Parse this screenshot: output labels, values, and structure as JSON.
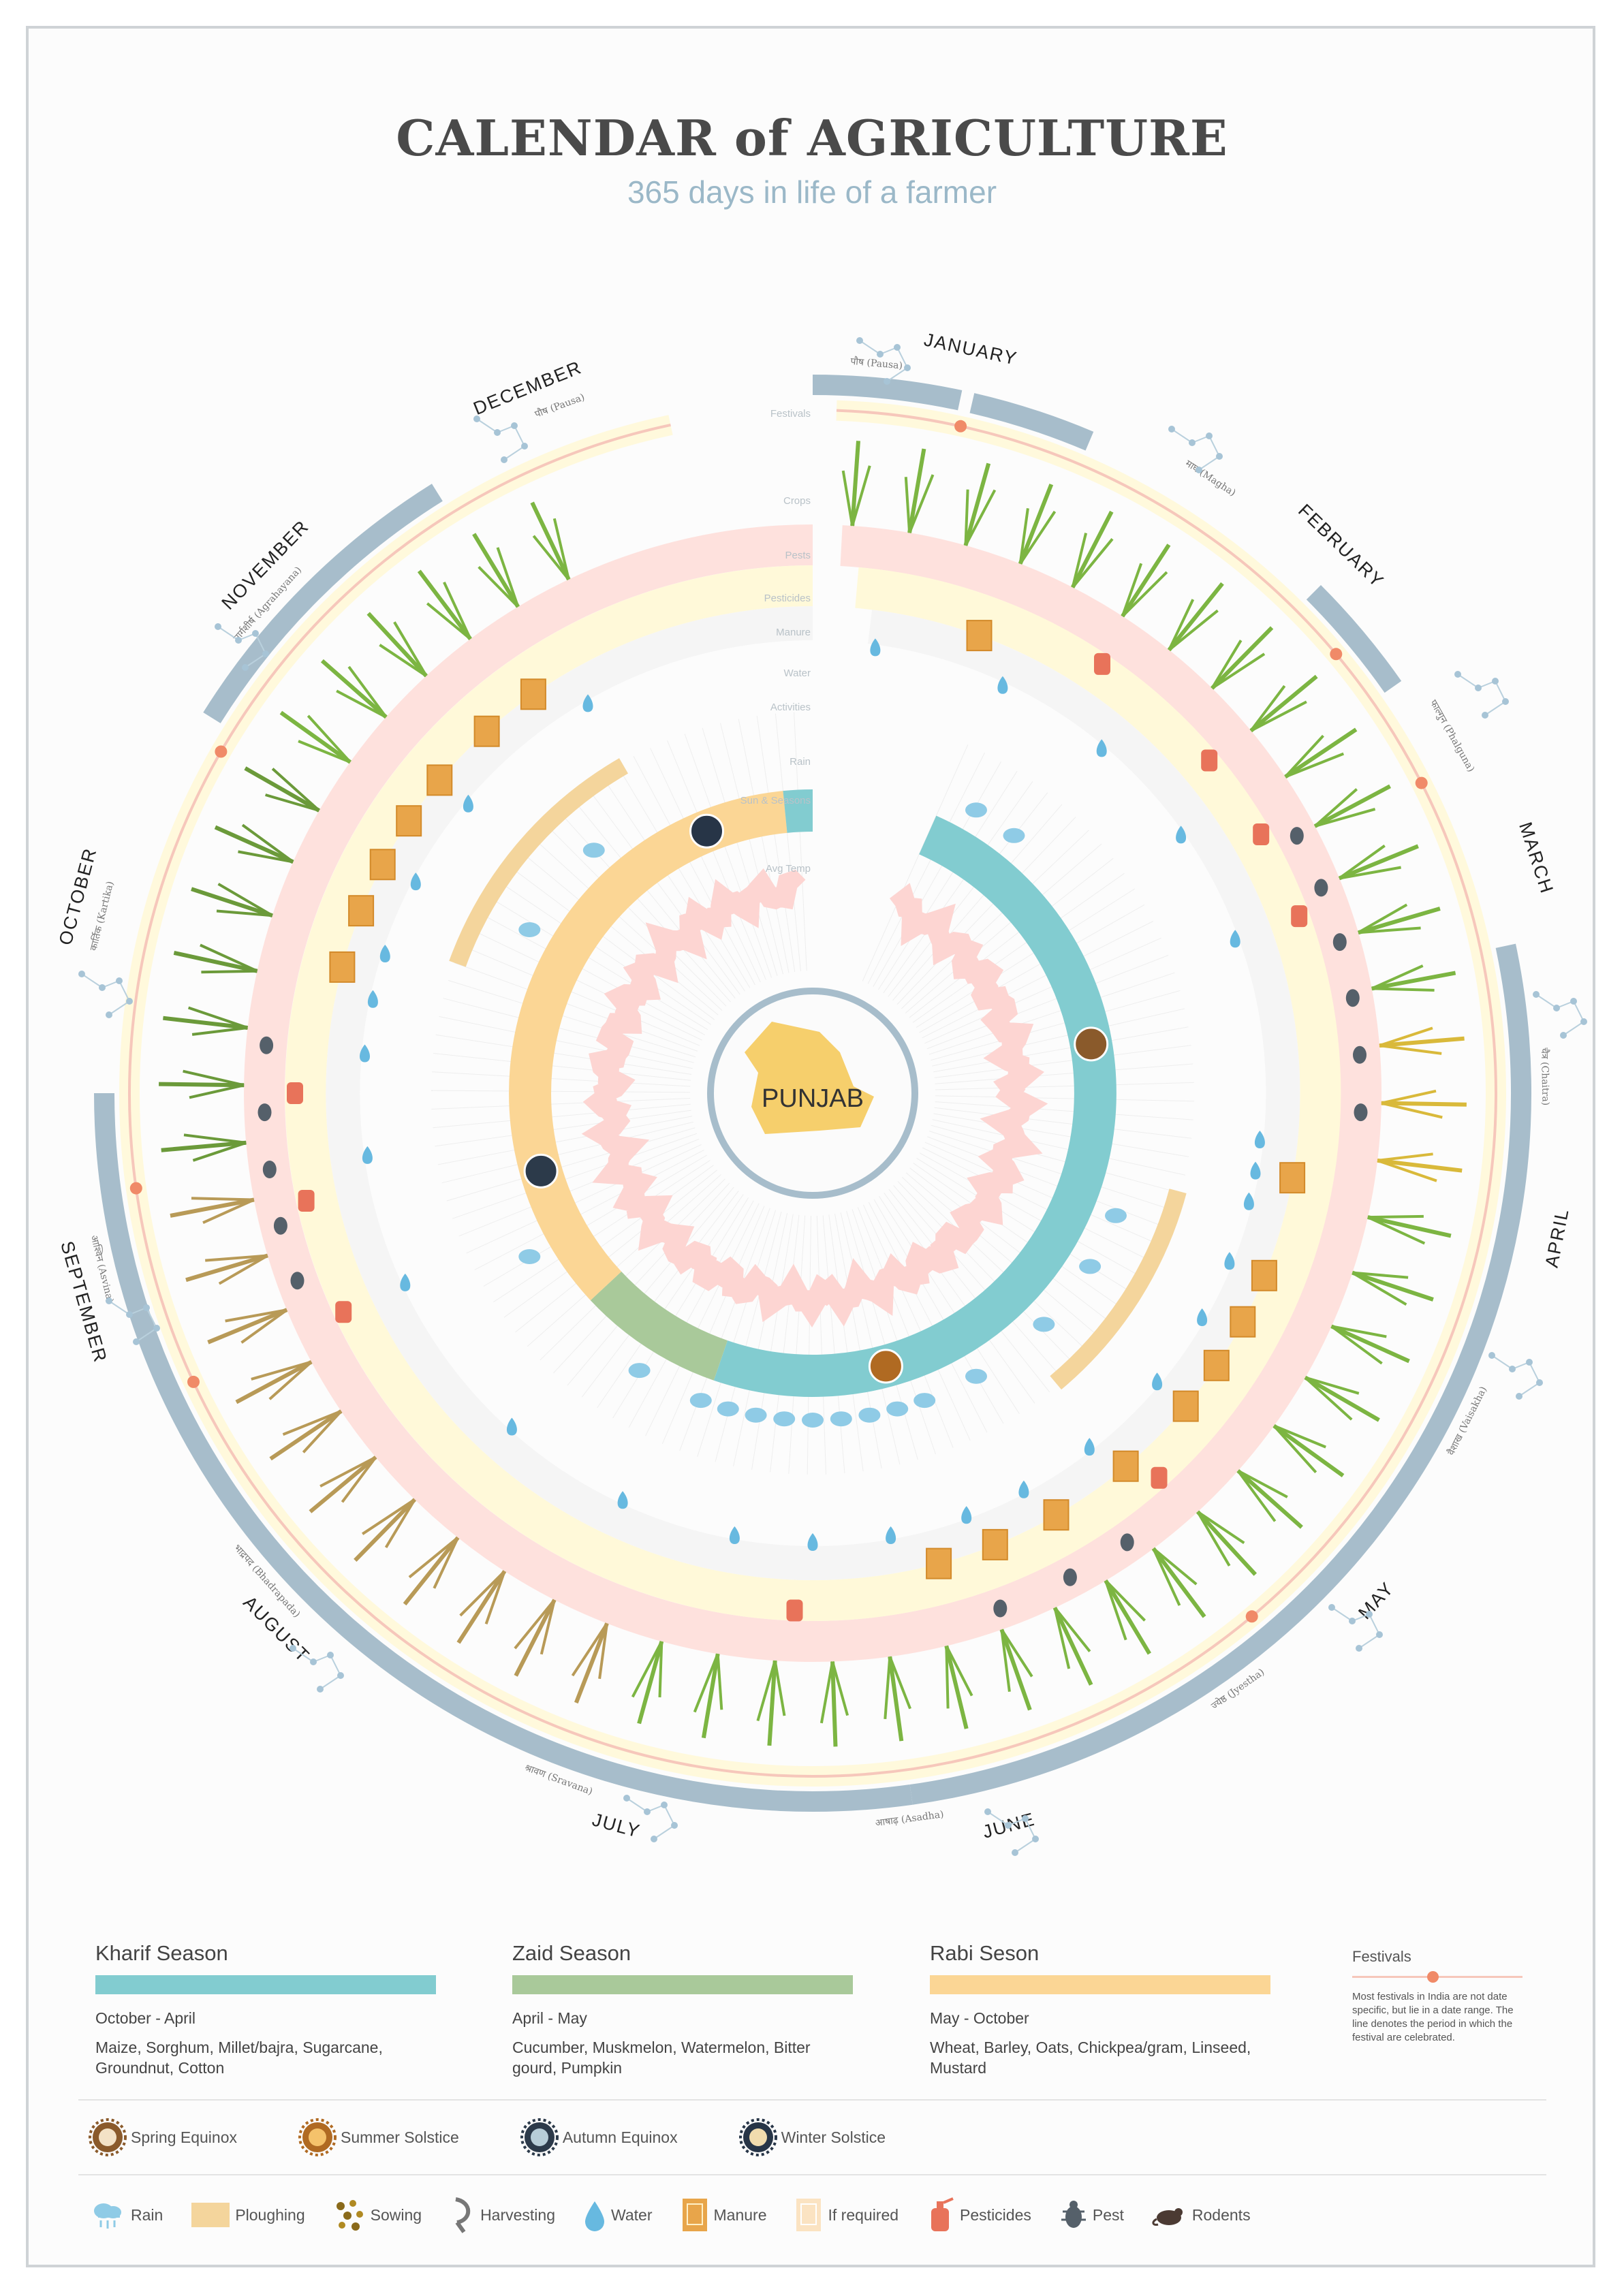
{
  "title": "CALENDAR of AGRICULTURE",
  "subtitle": "365 days in life of a farmer",
  "colors": {
    "kharif": "#82ccd0",
    "zaid": "#a9c99a",
    "rabi": "#fbd695",
    "festival": "#a7bdcb",
    "festival_dot": "#f08a68",
    "crops_ring": "#e9e9e5",
    "pests_ring": "#fee1dd",
    "manure_ring": "#fff9d9",
    "water_ring": "#f5f5f5",
    "temp": "#fdd5d2"
  },
  "chart_data": {
    "type": "radial-calendar",
    "center_label": "PUNJAB",
    "ring_labels": [
      "Festivals",
      "Crops",
      "Pests",
      "Pesticides",
      "Manure",
      "Water",
      "Activities",
      "Rain",
      "Sun & Seasons",
      "Avg Temp"
    ],
    "months": [
      "JANUARY",
      "FEBRUARY",
      "MARCH",
      "APRIL",
      "MAY",
      "JUNE",
      "JULY",
      "AUGUST",
      "SEPTEMBER",
      "OCTOBER",
      "NOVEMBER",
      "DECEMBER"
    ],
    "hindi_months": [
      "पौष (Pausa)",
      "माघ (Magha)",
      "फाल्गुन (Phalguna)",
      "चैत्र (Chaitra)",
      "वैशाख (Vaisakha)",
      "ज्येष्ठ (Jyestha)",
      "आषाढ़ (Asadha)",
      "श्रावण (Sravana)",
      "भाद्रपद (Bhadrapada)",
      "आश्विन (Asvina)",
      "कार्तिक (Kartika)",
      "मार्गशीर्ष (Agrahayana)",
      "पौष (Pausa)"
    ],
    "seasons": [
      {
        "name": "Kharif Season",
        "range": "October - April",
        "start_month": 0.0,
        "end_month": 6.25
      },
      {
        "name": "Zaid Season",
        "range": "April - May",
        "start_month": 6.25,
        "end_month": 7.25
      },
      {
        "name": "Rabi Seson",
        "range": "May - October",
        "start_month": 7.25,
        "end_month": 11.8
      }
    ],
    "astronomical_events": [
      "Spring Equinox",
      "Summer Solstice",
      "Autumn Equinox",
      "Winter Solstice"
    ]
  },
  "legend": {
    "seasons": [
      {
        "label": "Kharif Season",
        "range": "October - April",
        "crops": "Maize, Sorghum, Millet/bajra, Sugarcane, Groundnut, Cotton"
      },
      {
        "label": "Zaid Season",
        "range": "April - May",
        "crops": "Cucumber, Muskmelon, Watermelon, Bitter gourd, Pumpkin"
      },
      {
        "label": "Rabi Seson",
        "range": "May - October",
        "crops": "Wheat, Barley, Oats, Chickpea/gram, Linseed, Mustard"
      }
    ],
    "festivals_title": "Festivals",
    "festivals_note": "Most festivals in India are not date specific, but lie in a date range. The line denotes the period in which the festival are celebrated.",
    "sun": [
      "Spring Equinox",
      "Summer Solstice",
      "Autumn Equinox",
      "Winter Solstice"
    ],
    "activities": [
      "Rain",
      "Ploughing",
      "Sowing",
      "Harvesting",
      "Water",
      "Manure",
      "If required",
      "Pesticides",
      "Pest",
      "Rodents"
    ]
  }
}
